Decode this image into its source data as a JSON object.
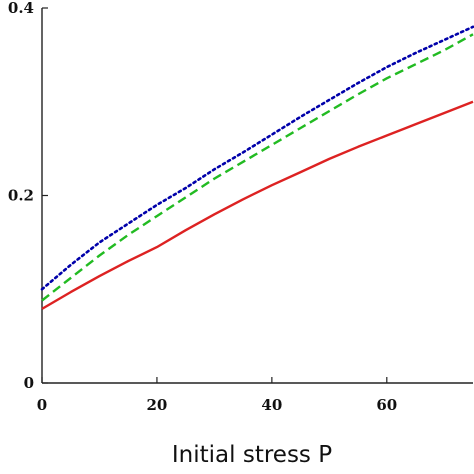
{
  "chart_data": {
    "type": "line",
    "title": "",
    "xlabel": "Initial stress P",
    "ylabel": "",
    "xlim": [
      0,
      75
    ],
    "ylim": [
      0,
      0.4
    ],
    "grid": false,
    "x_ticks": [
      0,
      20,
      40,
      60
    ],
    "x_tick_labels": [
      "0",
      "20",
      "40",
      "60"
    ],
    "y_ticks": [
      0,
      0.2,
      0.4
    ],
    "y_tick_labels": [
      "0",
      "0.2",
      "0.4"
    ],
    "series": [
      {
        "color": "#0000aa",
        "style": "dotted",
        "x": [
          0,
          5,
          10,
          15,
          20,
          25,
          30,
          35,
          40,
          45,
          50,
          55,
          60,
          65,
          70,
          75
        ],
        "y": [
          0.1,
          0.126,
          0.15,
          0.17,
          0.19,
          0.208,
          0.228,
          0.246,
          0.265,
          0.284,
          0.302,
          0.32,
          0.337,
          0.352,
          0.366,
          0.38
        ]
      },
      {
        "color": "#22bb22",
        "style": "dashed",
        "x": [
          0,
          5,
          10,
          15,
          20,
          25,
          30,
          35,
          40,
          45,
          50,
          55,
          60,
          65,
          70,
          75
        ],
        "y": [
          0.088,
          0.112,
          0.136,
          0.158,
          0.178,
          0.198,
          0.218,
          0.236,
          0.254,
          0.272,
          0.29,
          0.308,
          0.325,
          0.34,
          0.355,
          0.372
        ]
      },
      {
        "color": "#dd2222",
        "style": "solid",
        "x": [
          0,
          5,
          10,
          15,
          20,
          25,
          30,
          35,
          40,
          45,
          50,
          55,
          60,
          65,
          70,
          75
        ],
        "y": [
          0.079,
          0.097,
          0.114,
          0.13,
          0.145,
          0.163,
          0.18,
          0.196,
          0.211,
          0.225,
          0.239,
          0.252,
          0.264,
          0.276,
          0.288,
          0.3
        ]
      }
    ]
  }
}
